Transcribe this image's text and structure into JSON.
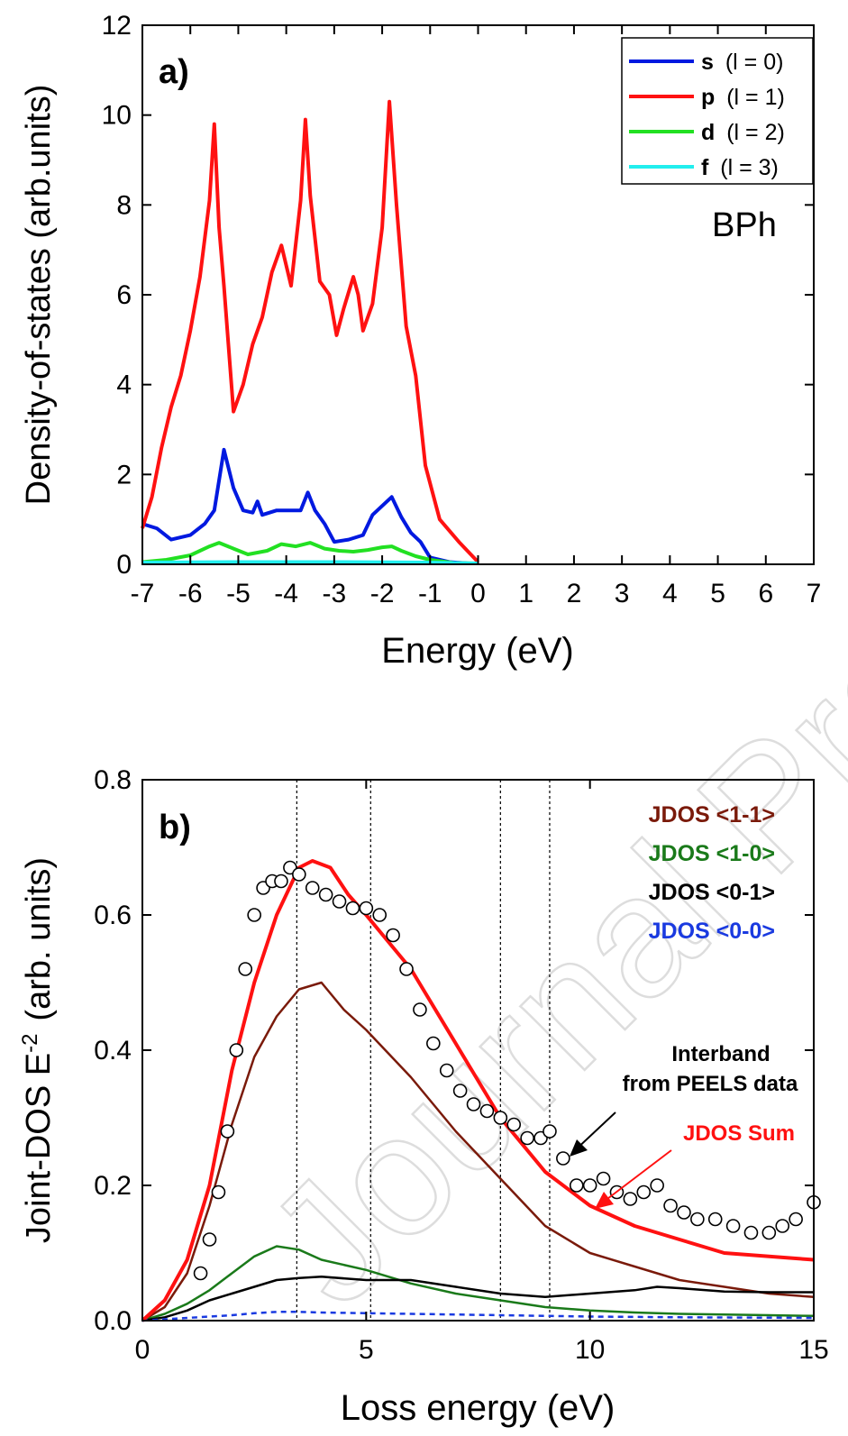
{
  "chart_data": [
    {
      "type": "line",
      "panel_label": "a)",
      "annotation": "BPh",
      "xlabel": "Energy  (eV)",
      "ylabel": "Density-of-states (arb.units)",
      "xlim": [
        -7,
        7
      ],
      "ylim": [
        0,
        12
      ],
      "xticks": [
        "-7",
        "-6",
        "-5",
        "-4",
        "-3",
        "-2",
        "-1",
        "0",
        "1",
        "2",
        "3",
        "4",
        "5",
        "6",
        "7"
      ],
      "yticks": [
        "0",
        "2",
        "4",
        "6",
        "8",
        "10",
        "12"
      ],
      "grid": false,
      "legend_position": "top-right",
      "series": [
        {
          "name": "s",
          "legend_suffix": "(l = 0)",
          "color": "#0019e0",
          "x": [
            -7,
            -6.7,
            -6.4,
            -6,
            -5.7,
            -5.5,
            -5.3,
            -5.1,
            -4.9,
            -4.7,
            -4.6,
            -4.5,
            -4.2,
            -3.9,
            -3.7,
            -3.55,
            -3.4,
            -3.2,
            -3,
            -2.7,
            -2.4,
            -2.2,
            -2,
            -1.8,
            -1.6,
            -1.4,
            -1.2,
            -1,
            -0.6,
            -0.2,
            0
          ],
          "y": [
            0.9,
            0.8,
            0.55,
            0.65,
            0.9,
            1.2,
            2.55,
            1.7,
            1.2,
            1.15,
            1.4,
            1.1,
            1.2,
            1.2,
            1.2,
            1.6,
            1.2,
            0.9,
            0.5,
            0.55,
            0.65,
            1.1,
            1.3,
            1.5,
            1.05,
            0.7,
            0.5,
            0.15,
            0.05,
            0.02,
            0.02
          ]
        },
        {
          "name": "p",
          "legend_suffix": "(l = 1)",
          "color": "#ff1111",
          "x": [
            -7,
            -6.8,
            -6.6,
            -6.4,
            -6.2,
            -6,
            -5.8,
            -5.6,
            -5.5,
            -5.4,
            -5.3,
            -5.1,
            -4.9,
            -4.7,
            -4.5,
            -4.3,
            -4.1,
            -3.9,
            -3.7,
            -3.6,
            -3.5,
            -3.3,
            -3.1,
            -2.95,
            -2.8,
            -2.6,
            -2.5,
            -2.4,
            -2.2,
            -2,
            -1.85,
            -1.7,
            -1.5,
            -1.3,
            -1.1,
            -0.8,
            -0.4,
            0
          ],
          "y": [
            0.8,
            1.5,
            2.6,
            3.5,
            4.2,
            5.2,
            6.4,
            8.1,
            9.8,
            7.5,
            6.2,
            3.4,
            4.0,
            4.9,
            5.5,
            6.5,
            7.1,
            6.2,
            8.1,
            9.9,
            8.2,
            6.3,
            6.0,
            5.1,
            5.7,
            6.4,
            6.0,
            5.2,
            5.8,
            7.5,
            10.3,
            8.0,
            5.3,
            4.2,
            2.2,
            1.0,
            0.5,
            0.05
          ]
        },
        {
          "name": "d",
          "legend_suffix": "(l = 2)",
          "color": "#22e022",
          "x": [
            -7,
            -6.5,
            -6,
            -5.6,
            -5.4,
            -5.1,
            -4.8,
            -4.4,
            -4.1,
            -3.8,
            -3.5,
            -3.2,
            -2.9,
            -2.6,
            -2.3,
            -2,
            -1.8,
            -1.6,
            -1.3,
            -1,
            -0.5,
            0
          ],
          "y": [
            0.05,
            0.1,
            0.2,
            0.4,
            0.48,
            0.35,
            0.22,
            0.3,
            0.45,
            0.4,
            0.48,
            0.35,
            0.3,
            0.28,
            0.32,
            0.38,
            0.4,
            0.3,
            0.18,
            0.1,
            0.03,
            0.02
          ]
        },
        {
          "name": "f",
          "legend_suffix": "(l = 3)",
          "color": "#22eeee",
          "x": [
            -7,
            -5,
            -3,
            -1,
            0
          ],
          "y": [
            0.04,
            0.05,
            0.05,
            0.04,
            0.02
          ]
        }
      ]
    },
    {
      "type": "line",
      "panel_label": "b)",
      "xlabel": "Loss energy (eV)",
      "ylabel": "Joint-DOS  E",
      "ylabel_superscript": "-2",
      "ylabel_unit": "(arb. units)",
      "xlim": [
        0,
        15
      ],
      "ylim": [
        0,
        0.8
      ],
      "xticks": [
        "0",
        "5",
        "10",
        "15"
      ],
      "yticks": [
        "0.0",
        "0.2",
        "0.4",
        "0.6",
        "0.8"
      ],
      "grid": false,
      "legend_position": "top-right",
      "vertical_lines": [
        3.45,
        5.1,
        8.0,
        9.1
      ],
      "series": [
        {
          "name": "JDOS <1-1>",
          "color": "#7a1a0a",
          "x": [
            0,
            0.5,
            1,
            1.5,
            2,
            2.5,
            3,
            3.5,
            4,
            4.5,
            5,
            6,
            7,
            8,
            9,
            10,
            11,
            12,
            13,
            14,
            15
          ],
          "y": [
            0,
            0.02,
            0.07,
            0.17,
            0.29,
            0.39,
            0.45,
            0.49,
            0.5,
            0.46,
            0.43,
            0.36,
            0.28,
            0.21,
            0.14,
            0.1,
            0.08,
            0.06,
            0.05,
            0.04,
            0.035
          ]
        },
        {
          "name": "JDOS <1-0>",
          "color": "#1a7a1a",
          "x": [
            0,
            0.5,
            1,
            1.5,
            2,
            2.5,
            3,
            3.5,
            4,
            5,
            6,
            7,
            8,
            9,
            10,
            11,
            12,
            13,
            14,
            15
          ],
          "y": [
            0,
            0.01,
            0.025,
            0.045,
            0.07,
            0.095,
            0.11,
            0.105,
            0.09,
            0.075,
            0.055,
            0.04,
            0.03,
            0.02,
            0.015,
            0.012,
            0.01,
            0.009,
            0.008,
            0.007
          ]
        },
        {
          "name": "JDOS <0-1>",
          "color": "#000000",
          "x": [
            0,
            0.5,
            1,
            1.5,
            2,
            2.5,
            3,
            3.5,
            4,
            5,
            6,
            7,
            8,
            9,
            10,
            11,
            11.5,
            12,
            13,
            14,
            15
          ],
          "y": [
            0,
            0.005,
            0.015,
            0.03,
            0.04,
            0.05,
            0.06,
            0.063,
            0.065,
            0.06,
            0.06,
            0.05,
            0.04,
            0.035,
            0.04,
            0.045,
            0.05,
            0.048,
            0.043,
            0.042,
            0.042
          ]
        },
        {
          "name": "JDOS <0-0>",
          "color": "#1a3ae0",
          "x": [
            0,
            1,
            2,
            2.5,
            3,
            3.5,
            4,
            6,
            8,
            10,
            12,
            15
          ],
          "y": [
            0,
            0.004,
            0.008,
            0.011,
            0.013,
            0.013,
            0.012,
            0.01,
            0.008,
            0.006,
            0.005,
            0.004
          ]
        },
        {
          "name": "JDOS Sum",
          "color": "#ff1111",
          "x": [
            0,
            0.5,
            1,
            1.5,
            2,
            2.5,
            3,
            3.5,
            3.8,
            4.2,
            4.6,
            5,
            6,
            7,
            8,
            9,
            10,
            11,
            12,
            13,
            14,
            15
          ],
          "y": [
            0,
            0.03,
            0.09,
            0.2,
            0.37,
            0.5,
            0.6,
            0.67,
            0.68,
            0.67,
            0.63,
            0.6,
            0.52,
            0.41,
            0.3,
            0.22,
            0.17,
            0.14,
            0.12,
            0.1,
            0.095,
            0.09
          ]
        },
        {
          "name": "Interband from PEELS data",
          "color": "#000000",
          "marker": "open-circle",
          "x": [
            1.3,
            1.5,
            1.7,
            1.9,
            2.1,
            2.3,
            2.5,
            2.7,
            2.9,
            3.1,
            3.3,
            3.5,
            3.8,
            4.1,
            4.4,
            4.7,
            5,
            5.3,
            5.6,
            5.9,
            6.2,
            6.5,
            6.8,
            7.1,
            7.4,
            7.7,
            8,
            8.3,
            8.6,
            8.9,
            9.1,
            9.4,
            9.7,
            10,
            10.3,
            10.6,
            10.9,
            11.2,
            11.5,
            11.8,
            12.1,
            12.4,
            12.8,
            13.2,
            13.6,
            14,
            14.3,
            14.6,
            15
          ],
          "y": [
            0.07,
            0.12,
            0.19,
            0.28,
            0.4,
            0.52,
            0.6,
            0.64,
            0.65,
            0.65,
            0.67,
            0.66,
            0.64,
            0.63,
            0.62,
            0.61,
            0.61,
            0.6,
            0.57,
            0.52,
            0.46,
            0.41,
            0.37,
            0.34,
            0.32,
            0.31,
            0.3,
            0.29,
            0.27,
            0.27,
            0.28,
            0.24,
            0.2,
            0.2,
            0.21,
            0.19,
            0.18,
            0.19,
            0.2,
            0.17,
            0.16,
            0.15,
            0.15,
            0.14,
            0.13,
            0.13,
            0.14,
            0.15,
            0.175
          ]
        }
      ],
      "annotations": {
        "peels_label_line1": "Interband",
        "peels_label_line2": "from PEELS data",
        "sum_label": "JDOS Sum"
      }
    }
  ],
  "watermark": "Journal Pre-proof"
}
